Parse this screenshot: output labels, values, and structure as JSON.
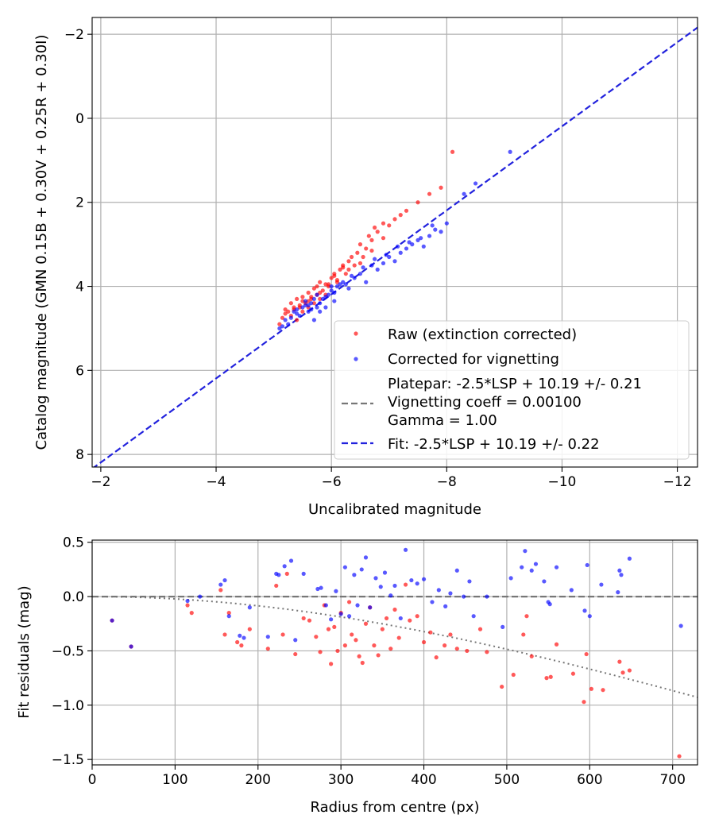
{
  "colors": {
    "raw": "#ff0000",
    "corrected": "#0000ff",
    "fit": "#2222dd",
    "platepar": "#777777",
    "vignetting_curve": "#777777",
    "grid": "#b0b0b0"
  },
  "chart_data": [
    {
      "type": "scatter",
      "xlabel": "Uncalibrated magnitude",
      "ylabel": "Catalog magnitude (GMN 0.15B + 0.30V + 0.25R + 0.30I)",
      "xlim": [
        -1.85,
        -12.35
      ],
      "ylim": [
        8.3,
        -2.4
      ],
      "xticks": [
        -2,
        -4,
        -6,
        -8,
        -10,
        -12
      ],
      "xtick_labels": [
        "−2",
        "−4",
        "−6",
        "−8",
        "−10",
        "−12"
      ],
      "yticks": [
        -2,
        0,
        2,
        4,
        6,
        8
      ],
      "ytick_labels": [
        "−2",
        "0",
        "2",
        "4",
        "6",
        "8"
      ],
      "grid": true,
      "legend": {
        "position": "lower-right",
        "raw_label": "Raw (extinction corrected)",
        "corrected_label": "Corrected for vignetting",
        "platepar_lines": [
          "Platepar: -2.5*LSP + 10.19 +/- 0.21",
          "Vignetting coeff = 0.00100",
          "Gamma = 1.00"
        ],
        "fit_label": "Fit: -2.5*LSP + 10.19 +/- 0.22"
      },
      "lines": {
        "fit": {
          "slope": 1,
          "intercept": 10.19
        },
        "platepar": {
          "slope": 1,
          "intercept": 10.19
        }
      },
      "series": [
        {
          "name": "Raw (extinction corrected)",
          "x": [
            -5.1,
            -5.15,
            -5.2,
            -5.25,
            -5.3,
            -5.3,
            -5.35,
            -5.4,
            -5.4,
            -5.45,
            -5.5,
            -5.5,
            -5.55,
            -5.6,
            -5.6,
            -5.65,
            -5.7,
            -5.7,
            -5.75,
            -5.8,
            -5.8,
            -5.85,
            -5.9,
            -5.95,
            -6.0,
            -6.05,
            -6.1,
            -6.15,
            -6.2,
            -6.25,
            -6.3,
            -6.35,
            -6.4,
            -6.45,
            -6.5,
            -6.55,
            -6.6,
            -6.65,
            -6.7,
            -6.75,
            -6.8,
            -6.9,
            -7.0,
            -7.1,
            -7.2,
            -7.3,
            -7.5,
            -7.7,
            -7.9,
            -8.1,
            -5.2,
            -5.35,
            -5.5,
            -5.65,
            -5.8,
            -5.95,
            -6.1,
            -6.3,
            -6.5,
            -6.7,
            -6.9,
            -5.45,
            -5.6,
            -5.75,
            -5.9,
            -6.05,
            -6.2
          ],
          "y": [
            4.9,
            4.75,
            4.55,
            4.6,
            4.4,
            4.7,
            4.5,
            4.3,
            4.8,
            4.45,
            4.25,
            4.6,
            4.4,
            4.15,
            4.5,
            4.3,
            4.05,
            4.4,
            4.2,
            3.9,
            4.3,
            4.1,
            3.95,
            4.0,
            3.8,
            3.7,
            3.9,
            3.6,
            3.5,
            3.7,
            3.4,
            3.3,
            3.5,
            3.2,
            3.0,
            3.3,
            3.1,
            2.8,
            2.9,
            2.6,
            2.7,
            2.5,
            2.55,
            2.4,
            2.3,
            2.2,
            2.0,
            1.8,
            1.65,
            0.8,
            4.65,
            4.55,
            4.35,
            4.25,
            4.15,
            3.95,
            3.85,
            3.6,
            3.45,
            3.15,
            2.85,
            4.5,
            4.35,
            4.0,
            4.2,
            3.75,
            3.55
          ]
        },
        {
          "name": "Corrected for vignetting",
          "x": [
            -5.1,
            -5.15,
            -5.2,
            -5.3,
            -5.35,
            -5.4,
            -5.45,
            -5.5,
            -5.55,
            -5.6,
            -5.65,
            -5.7,
            -5.7,
            -5.75,
            -5.8,
            -5.85,
            -5.9,
            -5.95,
            -6.0,
            -6.05,
            -6.1,
            -6.2,
            -6.3,
            -6.4,
            -6.5,
            -6.6,
            -6.7,
            -6.8,
            -6.9,
            -7.0,
            -7.1,
            -7.2,
            -7.3,
            -7.4,
            -7.5,
            -7.6,
            -7.7,
            -7.8,
            -7.9,
            -8.0,
            -8.3,
            -8.5,
            -9.1,
            -5.25,
            -5.4,
            -5.55,
            -5.65,
            -5.75,
            -5.9,
            -6.0,
            -6.15,
            -6.35,
            -6.55,
            -6.75,
            -6.95,
            -7.15,
            -7.35,
            -7.55,
            -7.75,
            -5.6,
            -5.8,
            -6.05,
            -6.25
          ],
          "y": [
            5.0,
            4.95,
            4.8,
            4.75,
            4.6,
            4.55,
            4.7,
            4.5,
            4.35,
            4.6,
            4.4,
            4.3,
            4.8,
            4.5,
            4.4,
            4.3,
            4.5,
            4.2,
            4.1,
            4.35,
            4.0,
            3.9,
            4.05,
            3.8,
            3.7,
            3.9,
            3.5,
            3.6,
            3.45,
            3.3,
            3.4,
            3.2,
            3.1,
            3.0,
            2.9,
            3.05,
            2.8,
            2.65,
            2.7,
            2.5,
            1.8,
            1.55,
            0.8,
            4.9,
            4.65,
            4.45,
            4.55,
            4.2,
            4.25,
            4.0,
            3.95,
            3.75,
            3.55,
            3.35,
            3.25,
            3.05,
            2.95,
            2.85,
            2.55,
            4.45,
            4.6,
            4.15,
            3.95
          ]
        }
      ]
    },
    {
      "type": "scatter",
      "xlabel": "Radius from centre (px)",
      "ylabel": "Fit residuals (mag)",
      "xlim": [
        0,
        730
      ],
      "ylim": [
        -1.55,
        0.52
      ],
      "xticks": [
        0,
        100,
        200,
        300,
        400,
        500,
        600,
        700
      ],
      "xtick_labels": [
        "0",
        "100",
        "200",
        "300",
        "400",
        "500",
        "600",
        "700"
      ],
      "yticks": [
        0.5,
        0.0,
        -0.5,
        -1.0,
        -1.5
      ],
      "ytick_labels": [
        "0.5",
        "0.0",
        "−0.5",
        "−1.0",
        "−1.5"
      ],
      "grid": true,
      "lines": {
        "zero": {
          "y": 0.0
        },
        "vignetting_curve": {
          "coeff": 0.001,
          "gamma": 1.0
        }
      },
      "series": [
        {
          "name": "Raw",
          "x": [
            24,
            47,
            115,
            120,
            155,
            160,
            165,
            175,
            180,
            190,
            212,
            222,
            230,
            235,
            245,
            255,
            262,
            270,
            275,
            280,
            285,
            288,
            292,
            296,
            300,
            305,
            310,
            313,
            318,
            322,
            326,
            330,
            335,
            340,
            345,
            350,
            355,
            360,
            365,
            370,
            378,
            383,
            392,
            400,
            408,
            415,
            425,
            432,
            440,
            452,
            468,
            476,
            494,
            508,
            520,
            524,
            530,
            548,
            553,
            560,
            580,
            593,
            596,
            602,
            616,
            636,
            640,
            648,
            708
          ],
          "y": [
            -0.22,
            -0.46,
            -0.08,
            -0.15,
            0.06,
            -0.35,
            -0.15,
            -0.42,
            -0.45,
            -0.3,
            -0.48,
            0.1,
            -0.35,
            0.21,
            -0.53,
            -0.2,
            -0.22,
            -0.37,
            -0.51,
            -0.08,
            -0.3,
            -0.62,
            -0.28,
            -0.5,
            -0.15,
            -0.45,
            -0.05,
            -0.35,
            -0.4,
            -0.55,
            -0.61,
            -0.25,
            -0.1,
            -0.45,
            -0.54,
            -0.3,
            -0.2,
            -0.48,
            -0.12,
            -0.38,
            0.11,
            -0.22,
            -0.18,
            -0.42,
            -0.33,
            -0.56,
            -0.45,
            -0.35,
            -0.48,
            -0.5,
            -0.3,
            -0.51,
            -0.83,
            -0.72,
            -0.35,
            -0.18,
            -0.55,
            -0.75,
            -0.74,
            -0.44,
            -0.71,
            -0.97,
            -0.53,
            -0.85,
            -0.86,
            -0.6,
            -0.7,
            -0.68,
            -1.47
          ]
        },
        {
          "name": "Corrected",
          "x": [
            24,
            47,
            115,
            130,
            155,
            160,
            165,
            178,
            183,
            190,
            212,
            222,
            225,
            232,
            240,
            245,
            255,
            272,
            276,
            282,
            288,
            294,
            300,
            305,
            310,
            316,
            320,
            325,
            330,
            335,
            342,
            348,
            353,
            360,
            365,
            372,
            378,
            385,
            392,
            400,
            410,
            418,
            426,
            432,
            440,
            448,
            455,
            460,
            476,
            495,
            505,
            518,
            522,
            530,
            535,
            545,
            550,
            552,
            560,
            578,
            594,
            597,
            600,
            614,
            634,
            636,
            638,
            648,
            710
          ],
          "y": [
            -0.22,
            -0.46,
            -0.04,
            0.0,
            0.11,
            0.15,
            -0.18,
            -0.36,
            -0.38,
            -0.1,
            -0.37,
            0.21,
            0.2,
            0.28,
            0.33,
            -0.4,
            0.21,
            0.07,
            0.08,
            -0.08,
            -0.21,
            0.05,
            -0.16,
            0.27,
            -0.18,
            0.2,
            -0.08,
            0.25,
            0.36,
            -0.1,
            0.17,
            0.09,
            0.22,
            0.01,
            0.1,
            -0.2,
            0.43,
            0.15,
            0.12,
            0.16,
            -0.05,
            0.06,
            -0.09,
            0.03,
            0.24,
            0.0,
            0.14,
            -0.18,
            0.0,
            -0.28,
            0.17,
            0.27,
            0.42,
            0.24,
            0.3,
            0.14,
            -0.05,
            -0.07,
            0.27,
            0.06,
            -0.13,
            0.29,
            -0.18,
            0.11,
            0.04,
            0.24,
            0.2,
            0.35,
            -0.27
          ]
        }
      ]
    }
  ]
}
